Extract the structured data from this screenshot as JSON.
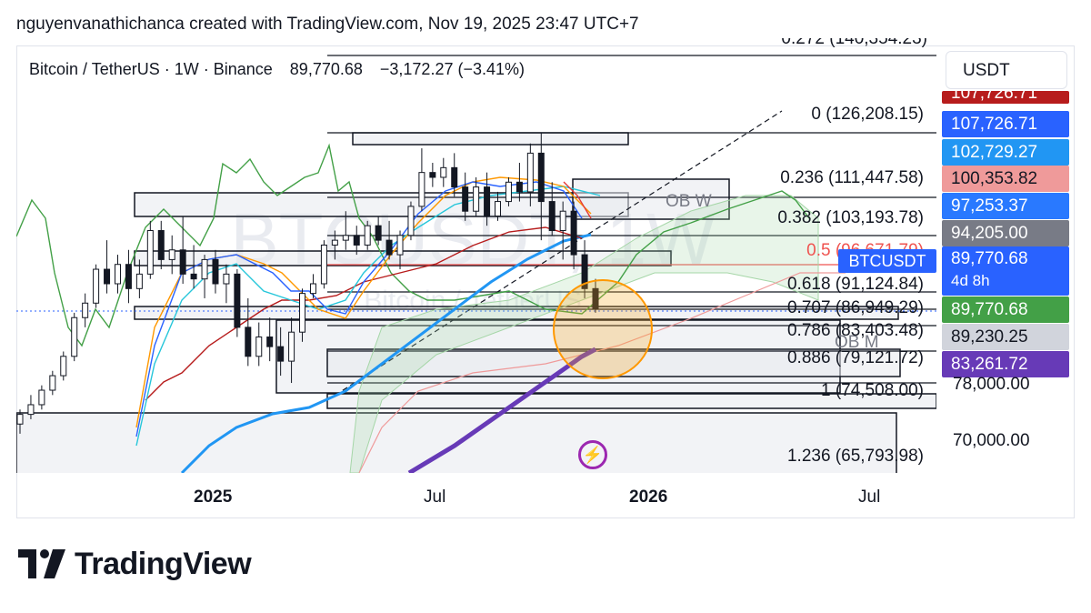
{
  "header": {
    "attribution": "nguyenvanathichanca created with TradingView.com, Nov 19, 2025 23:47 UTC+7"
  },
  "ticker": {
    "name": "Bitcoin / TetherUS · 1W · Binance",
    "price": "89,770.68",
    "change": "−3,172.27 (−3.41%)"
  },
  "watermark": {
    "symbol": "BTCUSDT, 1W",
    "name": "Bitcoin / TetherUS"
  },
  "currency_button": "USDT",
  "symbol_tag": "BTCUSDT",
  "price_labels": [
    {
      "text": "107,726.71",
      "color": "#b71c1c"
    },
    {
      "text": "107,726.71",
      "color": "#2962ff"
    },
    {
      "text": "102,729.27",
      "color": "#2196f3"
    },
    {
      "text": "100,353.82",
      "color": "#ef9a9a"
    },
    {
      "text": "97,253.37",
      "color": "#2979ff"
    },
    {
      "text": "94,205.00",
      "color": "#787b86"
    },
    {
      "text": "89,770.68",
      "color": "#2962ff"
    },
    {
      "text": "4d 8h",
      "color": "#2962ff"
    },
    {
      "text": "89,770.68",
      "color": "#43a047"
    },
    {
      "text": "89,230.25",
      "color": "#d1d4dc"
    },
    {
      "text": "83,261.72",
      "color": "#673ab7"
    }
  ],
  "axis_labels": [
    "78,000.00",
    "70,000.00"
  ],
  "x_labels": [
    {
      "text": "2025",
      "bold": true
    },
    {
      "text": "Jul",
      "bold": false
    },
    {
      "text": "2026",
      "bold": true
    },
    {
      "text": "Jul",
      "bold": false
    }
  ],
  "fib_levels": [
    {
      "text": "0.272 (140,354.23)"
    },
    {
      "text": "0 (126,208.15)"
    },
    {
      "text": "0.236 (111,447.58)"
    },
    {
      "text": "0.382 (103,193.78)"
    },
    {
      "text": "0.5 (96,671.79)"
    },
    {
      "text": "0.618 (91,124.84)"
    },
    {
      "text": "0.707 (86,949.29)"
    },
    {
      "text": "0.786 (83,403.48)"
    },
    {
      "text": "0.886 (79,121.72)"
    },
    {
      "text": "1 (74,508.00)"
    },
    {
      "text": "1.236 (65,793.98)"
    }
  ],
  "zone_labels": [
    "OB W",
    "OB M"
  ],
  "logo_text": "TradingView",
  "chart_data": {
    "type": "candlestick",
    "title": "Bitcoin / TetherUS · 1W · Binance",
    "last_price": 89770.68,
    "y_range": [
      63000,
      140000
    ],
    "x_ticks": [
      "2025",
      "Jul",
      "2026",
      "Jul"
    ],
    "candles": [
      {
        "o": 66000,
        "h": 69000,
        "l": 64000,
        "c": 68000
      },
      {
        "o": 68000,
        "h": 72000,
        "l": 67000,
        "c": 70000
      },
      {
        "o": 70000,
        "h": 74000,
        "l": 69000,
        "c": 73000
      },
      {
        "o": 73000,
        "h": 77000,
        "l": 72000,
        "c": 76000
      },
      {
        "o": 76000,
        "h": 81000,
        "l": 75000,
        "c": 80000
      },
      {
        "o": 80000,
        "h": 89000,
        "l": 79000,
        "c": 88000
      },
      {
        "o": 88000,
        "h": 93000,
        "l": 86000,
        "c": 91000
      },
      {
        "o": 91000,
        "h": 99000,
        "l": 90000,
        "c": 98000
      },
      {
        "o": 98000,
        "h": 104000,
        "l": 93000,
        "c": 95000
      },
      {
        "o": 95000,
        "h": 101000,
        "l": 93000,
        "c": 99000
      },
      {
        "o": 99000,
        "h": 102000,
        "l": 91000,
        "c": 94000
      },
      {
        "o": 94000,
        "h": 100000,
        "l": 92000,
        "c": 97000
      },
      {
        "o": 97000,
        "h": 108000,
        "l": 96000,
        "c": 106000
      },
      {
        "o": 106000,
        "h": 108000,
        "l": 98000,
        "c": 100000
      },
      {
        "o": 100000,
        "h": 105000,
        "l": 97000,
        "c": 102000
      },
      {
        "o": 102000,
        "h": 109000,
        "l": 95000,
        "c": 97000
      },
      {
        "o": 97000,
        "h": 103000,
        "l": 94000,
        "c": 96000
      },
      {
        "o": 96000,
        "h": 101000,
        "l": 92000,
        "c": 100000
      },
      {
        "o": 100000,
        "h": 102000,
        "l": 93000,
        "c": 95000
      },
      {
        "o": 95000,
        "h": 99000,
        "l": 91000,
        "c": 97000
      },
      {
        "o": 97000,
        "h": 98000,
        "l": 84000,
        "c": 86000
      },
      {
        "o": 86000,
        "h": 92000,
        "l": 78000,
        "c": 80000
      },
      {
        "o": 80000,
        "h": 87000,
        "l": 78000,
        "c": 84000
      },
      {
        "o": 84000,
        "h": 88000,
        "l": 79000,
        "c": 82000
      },
      {
        "o": 82000,
        "h": 86000,
        "l": 76000,
        "c": 79000
      },
      {
        "o": 79000,
        "h": 88000,
        "l": 74500,
        "c": 85000
      },
      {
        "o": 85000,
        "h": 94000,
        "l": 83000,
        "c": 93000
      },
      {
        "o": 93000,
        "h": 97000,
        "l": 92000,
        "c": 95000
      },
      {
        "o": 95000,
        "h": 104000,
        "l": 94000,
        "c": 103000
      },
      {
        "o": 103000,
        "h": 106000,
        "l": 100000,
        "c": 104000
      },
      {
        "o": 104000,
        "h": 110000,
        "l": 102000,
        "c": 105000
      },
      {
        "o": 105000,
        "h": 107000,
        "l": 101000,
        "c": 103000
      },
      {
        "o": 103000,
        "h": 108000,
        "l": 102000,
        "c": 107000
      },
      {
        "o": 107000,
        "h": 109000,
        "l": 103000,
        "c": 104000
      },
      {
        "o": 104000,
        "h": 108000,
        "l": 100000,
        "c": 101000
      },
      {
        "o": 101000,
        "h": 106000,
        "l": 98000,
        "c": 105000
      },
      {
        "o": 105000,
        "h": 112000,
        "l": 104000,
        "c": 111000
      },
      {
        "o": 111000,
        "h": 123000,
        "l": 110000,
        "c": 118000
      },
      {
        "o": 118000,
        "h": 120000,
        "l": 115000,
        "c": 117000
      },
      {
        "o": 117000,
        "h": 121000,
        "l": 115000,
        "c": 119000
      },
      {
        "o": 119000,
        "h": 122000,
        "l": 113000,
        "c": 115000
      },
      {
        "o": 115000,
        "h": 118000,
        "l": 108000,
        "c": 110000
      },
      {
        "o": 110000,
        "h": 117000,
        "l": 109000,
        "c": 115000
      },
      {
        "o": 115000,
        "h": 118000,
        "l": 107000,
        "c": 109000
      },
      {
        "o": 109000,
        "h": 114000,
        "l": 108000,
        "c": 112000
      },
      {
        "o": 112000,
        "h": 117000,
        "l": 111000,
        "c": 116000
      },
      {
        "o": 116000,
        "h": 120000,
        "l": 112000,
        "c": 114000
      },
      {
        "o": 114000,
        "h": 124000,
        "l": 111000,
        "c": 122000
      },
      {
        "o": 122000,
        "h": 126200,
        "l": 104000,
        "c": 112000
      },
      {
        "o": 112000,
        "h": 116000,
        "l": 105000,
        "c": 106000
      },
      {
        "o": 106000,
        "h": 112000,
        "l": 100000,
        "c": 110000
      },
      {
        "o": 110000,
        "h": 112000,
        "l": 98000,
        "c": 101000
      },
      {
        "o": 101000,
        "h": 104000,
        "l": 92000,
        "c": 94000
      },
      {
        "o": 94000,
        "h": 96000,
        "l": 89000,
        "c": 89770.68
      }
    ]
  }
}
